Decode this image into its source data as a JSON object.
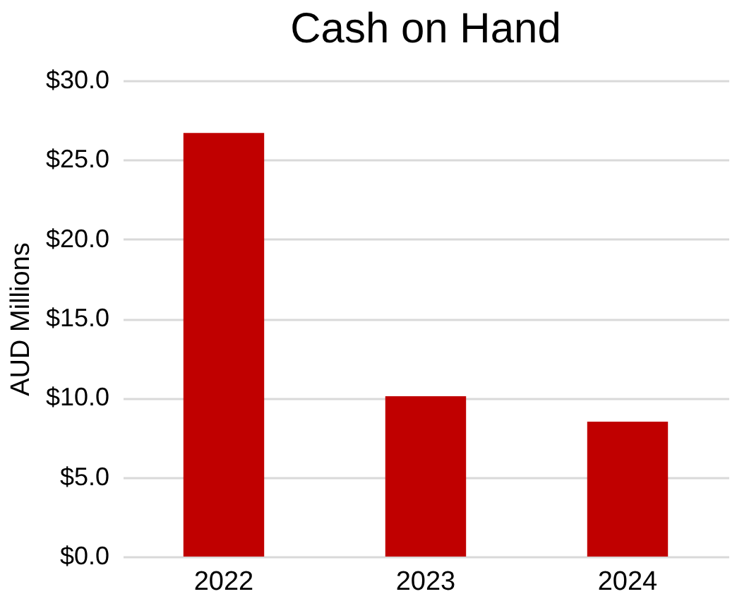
{
  "chart_data": {
    "type": "bar",
    "title": "Cash on Hand",
    "ylabel": "AUD Millions",
    "categories": [
      "2022",
      "2023",
      "2024"
    ],
    "values": [
      26.7,
      10.1,
      8.5
    ],
    "color": "#c00000",
    "ylim": [
      0,
      30
    ],
    "yticks": [
      {
        "value": 0,
        "label": "$0.0"
      },
      {
        "value": 5,
        "label": "$5.0"
      },
      {
        "value": 10,
        "label": "$10.0"
      },
      {
        "value": 15,
        "label": "$15.0"
      },
      {
        "value": 20,
        "label": "$20.0"
      },
      {
        "value": 25,
        "label": "$25.0"
      },
      {
        "value": 30,
        "label": "$30.0"
      }
    ],
    "grid": "y"
  }
}
